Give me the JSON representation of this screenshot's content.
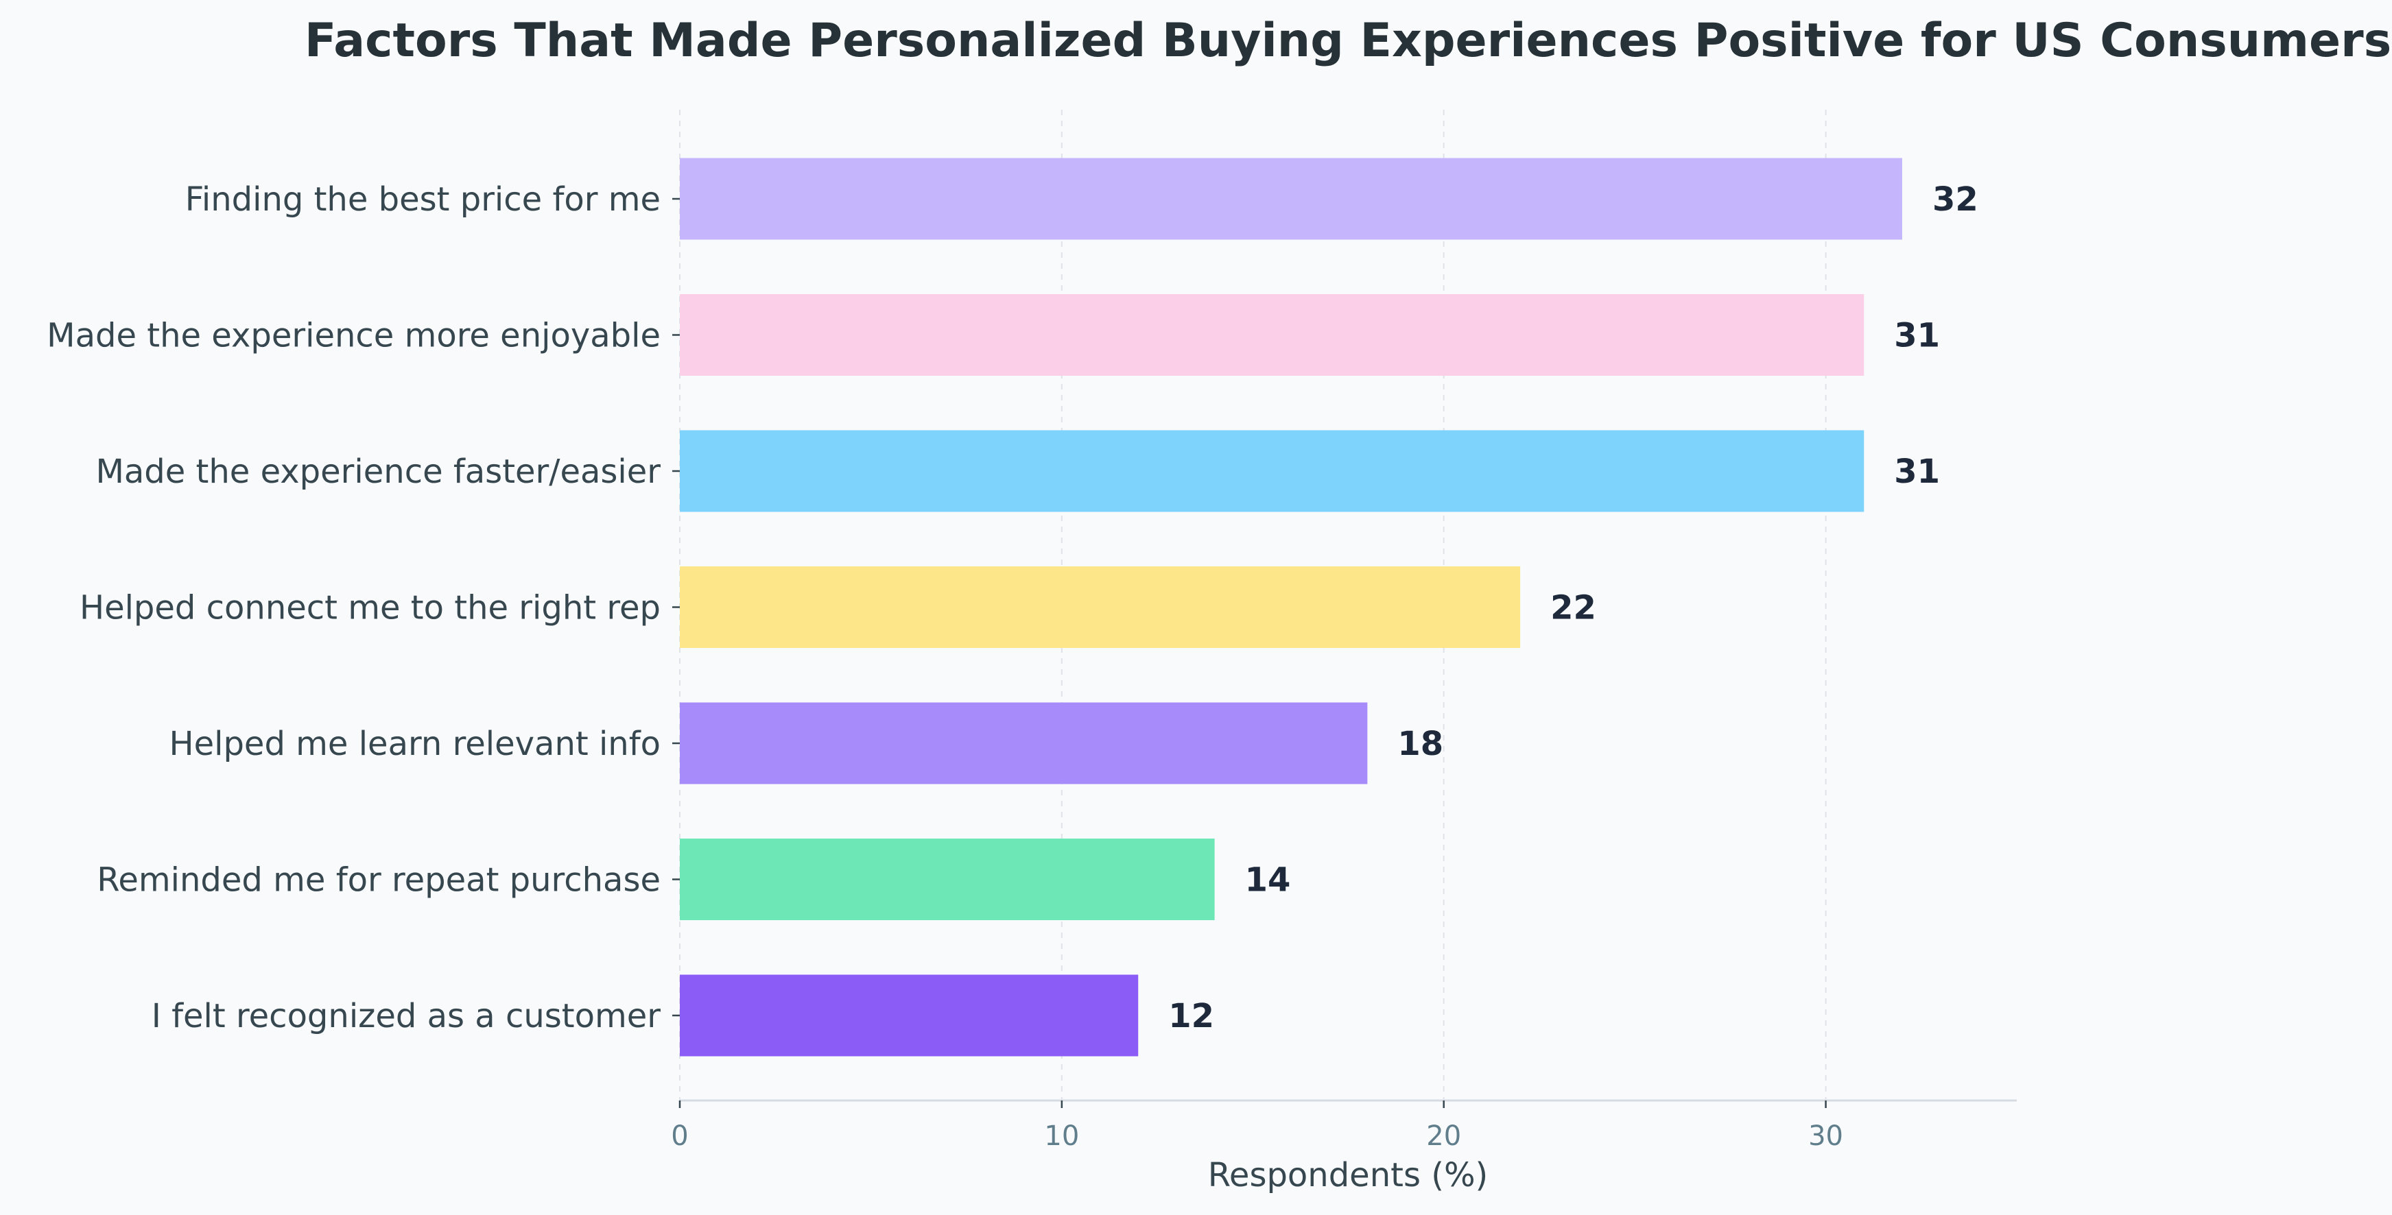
{
  "chart_data": {
    "type": "bar",
    "orientation": "horizontal",
    "title": "Factors That Made Personalized Buying Experiences Positive for US Consumers",
    "xlabel": "Respondents (%)",
    "ylabel": "",
    "xlim": [
      0,
      35
    ],
    "xticks": [
      0,
      10,
      20,
      30
    ],
    "grid": "x-dashed",
    "categories": [
      "Finding the best price for me",
      "Made the experience more enjoyable",
      "Made the experience faster/easier",
      "Helped connect me to the right rep",
      "Helped me learn relevant info",
      "Reminded me for repeat purchase",
      "I felt recognized as a customer"
    ],
    "values": [
      32,
      31,
      31,
      22,
      18,
      14,
      12
    ],
    "colors": [
      "#c4b5fd",
      "#fbcfe8",
      "#7dd3fc",
      "#fde68a",
      "#a78bfa",
      "#6ee7b7",
      "#8b5cf6"
    ]
  }
}
